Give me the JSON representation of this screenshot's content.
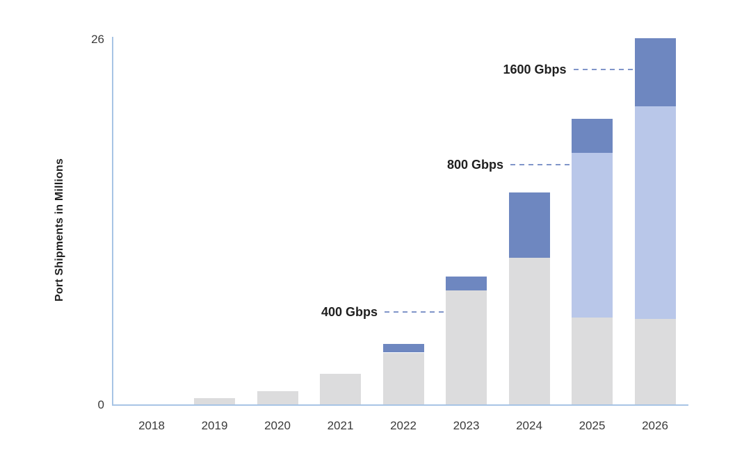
{
  "chart_data": {
    "type": "bar",
    "stacked": true,
    "title": "",
    "xlabel": "",
    "ylabel": "Port Shipments in Millions",
    "ylim": [
      0,
      26
    ],
    "ytick_labels": [
      "0",
      "26"
    ],
    "grid": false,
    "legend_position": "none",
    "categories": [
      "2018",
      "2019",
      "2020",
      "2021",
      "2022",
      "2023",
      "2024",
      "2025",
      "2026"
    ],
    "series": [
      {
        "name": "gray-segment",
        "color": "#dcdcdd",
        "values": [
          0,
          0.5,
          1.0,
          2.2,
          3.7,
          8.1,
          10.4,
          6.2,
          6.1
        ]
      },
      {
        "name": "light-blue-segment",
        "color": "#b9c7e9",
        "values": [
          0,
          0,
          0,
          0,
          0,
          0,
          0,
          11.6,
          15.0
        ]
      },
      {
        "name": "dark-blue-segment",
        "color": "#6e87c0",
        "values": [
          0,
          0,
          0,
          0,
          0.6,
          1.0,
          4.6,
          2.4,
          4.8
        ]
      }
    ],
    "annotations": [
      {
        "label": "400 Gbps",
        "y_value": 6.6,
        "target_category": "2023"
      },
      {
        "label": "800 Gbps",
        "y_value": 17.0,
        "target_category": "2025"
      },
      {
        "label": "1600 Gbps",
        "y_value": 23.7,
        "target_category": "2026"
      }
    ],
    "colors": {
      "axis": "#a7c4e5",
      "dash": "#8095c9",
      "tick_text": "#3a3a3a",
      "annotation_text": "#1f1f1f",
      "background": "#ffffff"
    }
  }
}
